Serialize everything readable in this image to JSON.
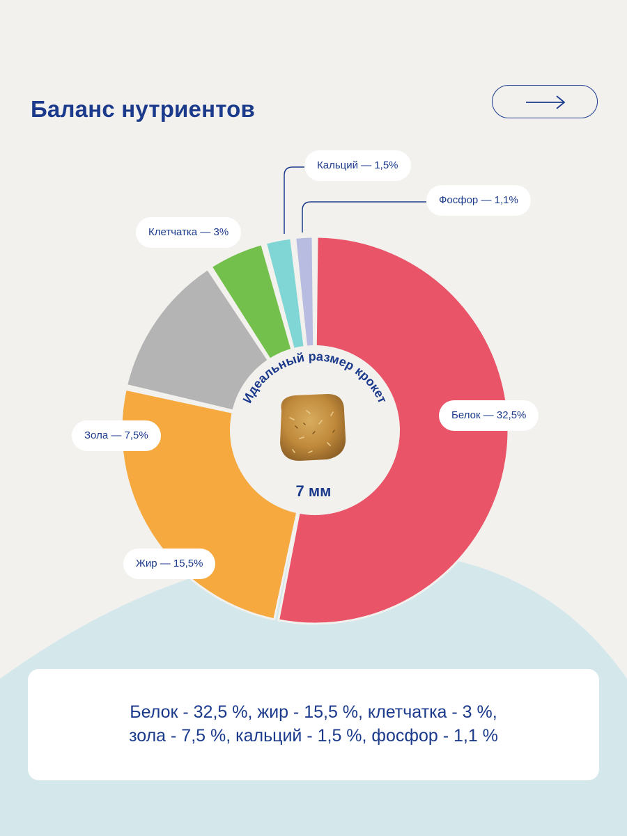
{
  "title": "Баланс нутриентов",
  "next_button": {
    "icon": "arrow-right-icon"
  },
  "chart_data": {
    "type": "pie",
    "variant": "donut",
    "slices": [
      {
        "label": "Белок — 32,5%",
        "value": 32.5,
        "color": "#e95468"
      },
      {
        "label": "Жир — 15,5%",
        "value": 15.5,
        "color": "#f5a93f"
      },
      {
        "label": "Зола — 7,5%",
        "value": 7.5,
        "color": "#b4b4b4"
      },
      {
        "label": "Клетчатка — 3%",
        "value": 3,
        "color": "#74c04c"
      },
      {
        "label": "Кальций — 1,5%",
        "value": 1.5,
        "color": "#7fd6d4"
      },
      {
        "label": "Фосфор — 1,1%",
        "value": 1.1,
        "color": "#b7bce0"
      }
    ],
    "center": {
      "arc_text": "Идеальный размер крокет",
      "size_label": "7 мм",
      "image": "kibble-image"
    }
  },
  "summary": {
    "line1": "Белок - 32,5 %, жир - 15,5 %, клетчатка - 3 %,",
    "line2": "зола - 7,5 %, кальций - 1,5 %, фосфор - 1,1 %"
  },
  "colors": {
    "brand_blue": "#1b3a8c",
    "background": "#f2f1ee",
    "wave": "#d4e8ec"
  }
}
